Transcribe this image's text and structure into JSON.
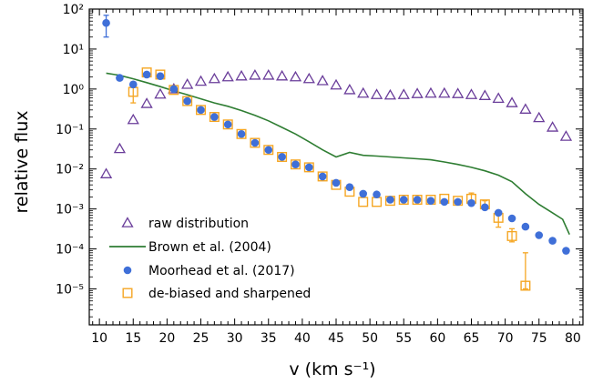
{
  "chart_data": {
    "type": "scatter",
    "xlabel": "v (km s⁻¹)",
    "ylabel": "relative flux",
    "xlim": [
      8.5,
      81.5
    ],
    "ylim_log10": [
      -5.9,
      2
    ],
    "y_scale": "log",
    "x_ticks": [
      10,
      15,
      20,
      25,
      30,
      35,
      40,
      45,
      50,
      55,
      60,
      65,
      70,
      75,
      80
    ],
    "y_ticks": [
      {
        "exp": 2,
        "label": "10²"
      },
      {
        "exp": 1,
        "label": "10¹"
      },
      {
        "exp": 0,
        "label": "10⁰"
      },
      {
        "exp": -1,
        "label": "10⁻¹"
      },
      {
        "exp": -2,
        "label": "10⁻²"
      },
      {
        "exp": -3,
        "label": "10⁻³"
      },
      {
        "exp": -4,
        "label": "10⁻⁴"
      },
      {
        "exp": -5,
        "label": "10⁻⁵"
      }
    ],
    "legend_position": "lower-left",
    "series": [
      {
        "name": "raw distribution",
        "marker": "triangle",
        "color": "#6a3d9a",
        "x": [
          11,
          13,
          15,
          17,
          19,
          21,
          23,
          25,
          27,
          29,
          31,
          33,
          35,
          37,
          39,
          41,
          43,
          45,
          47,
          49,
          51,
          53,
          55,
          57,
          59,
          61,
          63,
          65,
          67,
          69,
          71,
          73,
          75,
          77,
          79
        ],
        "y": [
          0.0075,
          0.032,
          0.17,
          0.43,
          0.74,
          1.0,
          1.3,
          1.55,
          1.8,
          2.0,
          2.1,
          2.2,
          2.2,
          2.1,
          2.0,
          1.8,
          1.6,
          1.25,
          0.95,
          0.78,
          0.72,
          0.7,
          0.72,
          0.76,
          0.78,
          0.78,
          0.76,
          0.72,
          0.68,
          0.58,
          0.45,
          0.31,
          0.19,
          0.11,
          0.065
        ]
      },
      {
        "name": "Brown et al. (2004)",
        "marker": "line",
        "color": "#2e7d32",
        "x": [
          11,
          13,
          15,
          17,
          19,
          21,
          23,
          25,
          27,
          29,
          31,
          33,
          35,
          37,
          39,
          41,
          43,
          45,
          47,
          49,
          51,
          53,
          55,
          57,
          59,
          61,
          63,
          65,
          67,
          69,
          71,
          73,
          75,
          77,
          78.5,
          79.5
        ],
        "y": [
          2.5,
          2.2,
          1.8,
          1.45,
          1.15,
          0.9,
          0.72,
          0.57,
          0.45,
          0.37,
          0.29,
          0.22,
          0.16,
          0.11,
          0.075,
          0.048,
          0.03,
          0.02,
          0.026,
          0.022,
          0.021,
          0.02,
          0.019,
          0.018,
          0.017,
          0.015,
          0.013,
          0.011,
          0.009,
          0.007,
          0.0048,
          0.0024,
          0.0013,
          0.0008,
          0.00055,
          0.00023
        ]
      },
      {
        "name": "Moorhead et al. (2017)",
        "marker": "circle",
        "color": "#3f6fd8",
        "x": [
          11,
          13,
          15,
          17,
          19,
          21,
          23,
          25,
          27,
          29,
          31,
          33,
          35,
          37,
          39,
          41,
          43,
          45,
          47,
          49,
          51,
          53,
          55,
          57,
          59,
          61,
          63,
          65,
          67,
          69,
          71,
          73,
          75,
          77,
          79
        ],
        "y": [
          45,
          1.9,
          1.3,
          2.3,
          2.1,
          1.0,
          0.5,
          0.3,
          0.2,
          0.13,
          0.075,
          0.045,
          0.03,
          0.02,
          0.013,
          0.011,
          0.0065,
          0.0045,
          0.0035,
          0.0024,
          0.0023,
          0.0017,
          0.0017,
          0.0017,
          0.0016,
          0.0015,
          0.0015,
          0.0014,
          0.0011,
          0.0008,
          0.00058,
          0.00036,
          0.00022,
          0.00016,
          9e-05
        ],
        "yerr_low": [
          20,
          null,
          null,
          null,
          null,
          null,
          null,
          null,
          null,
          null,
          null,
          null,
          null,
          null,
          null,
          null,
          null,
          null,
          null,
          null,
          null,
          null,
          null,
          null,
          null,
          null,
          null,
          null,
          null,
          null,
          null,
          null,
          null,
          null,
          null
        ],
        "yerr_high": [
          70,
          null,
          null,
          null,
          null,
          null,
          null,
          null,
          null,
          null,
          null,
          null,
          null,
          null,
          null,
          null,
          null,
          null,
          null,
          null,
          null,
          null,
          null,
          null,
          null,
          null,
          null,
          null,
          null,
          null,
          null,
          null,
          null,
          null,
          null
        ]
      },
      {
        "name": "de-biased and sharpened",
        "marker": "square",
        "color": "#f5a623",
        "x": [
          15,
          17,
          19,
          21,
          23,
          25,
          27,
          29,
          31,
          33,
          35,
          37,
          39,
          41,
          43,
          45,
          47,
          49,
          51,
          53,
          55,
          57,
          59,
          61,
          63,
          65,
          67,
          69,
          71,
          73
        ],
        "y": [
          0.85,
          2.6,
          2.3,
          0.95,
          0.5,
          0.3,
          0.2,
          0.13,
          0.075,
          0.045,
          0.03,
          0.02,
          0.013,
          0.011,
          0.0065,
          0.004,
          0.0027,
          0.0015,
          0.0015,
          0.0016,
          0.0017,
          0.0017,
          0.0017,
          0.0018,
          0.0016,
          0.0018,
          0.0013,
          0.0006,
          0.00021,
          1.2e-05
        ],
        "yerr_low": [
          0.45,
          null,
          null,
          null,
          null,
          null,
          null,
          null,
          null,
          null,
          null,
          null,
          null,
          null,
          null,
          null,
          null,
          null,
          null,
          null,
          null,
          null,
          null,
          null,
          null,
          0.0013,
          0.001,
          0.00035,
          0.00015,
          1e-05
        ],
        "yerr_high": [
          1.5,
          null,
          null,
          null,
          null,
          null,
          null,
          null,
          null,
          null,
          null,
          null,
          null,
          null,
          null,
          null,
          null,
          null,
          null,
          null,
          null,
          null,
          null,
          null,
          null,
          0.0025,
          0.0016,
          0.00085,
          0.00032,
          8e-05
        ]
      }
    ]
  }
}
